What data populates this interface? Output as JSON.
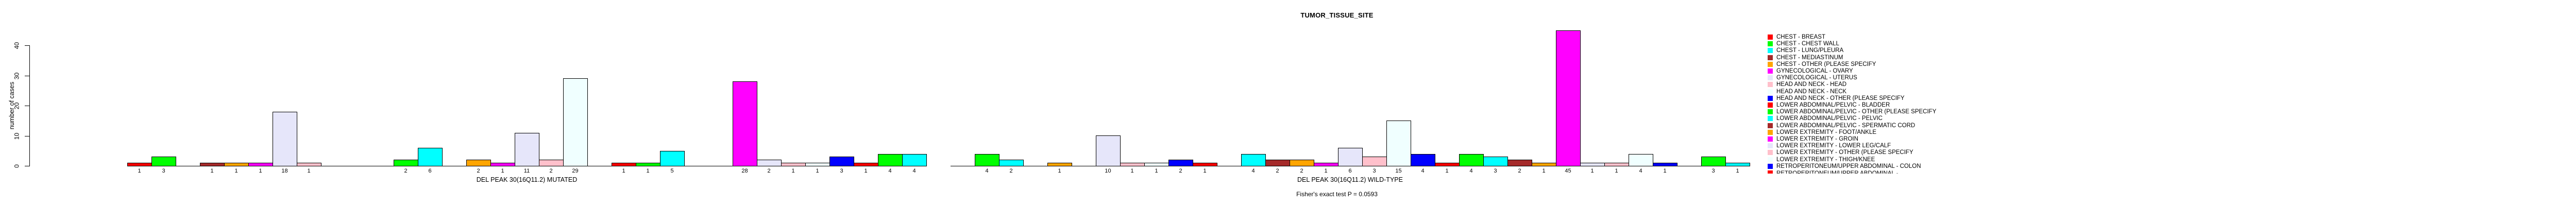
{
  "title": "TUMOR_TISSUE_SITE",
  "footer": "Fisher's exact test P = 0.0593",
  "y_axis": {
    "label": "number of cases",
    "ticks": [
      0,
      10,
      20,
      30,
      40
    ]
  },
  "palette": [
    "#FF0000",
    "#00FF00",
    "#00FFFF",
    "#A52A2A",
    "#FFA500",
    "#FF00FF",
    "#E6E6FA",
    "#FFC0CB",
    "#F0FFFF",
    "#0000FF"
  ],
  "legend": {
    "entries": [
      {
        "label": "CHEST - BREAST",
        "color": "#FF0000"
      },
      {
        "label": "CHEST - CHEST WALL",
        "color": "#00FF00"
      },
      {
        "label": "CHEST - LUNG/PLEURA",
        "color": "#00FFFF"
      },
      {
        "label": "CHEST - MEDIASTINUM",
        "color": "#A52A2A"
      },
      {
        "label": "CHEST - OTHER (PLEASE SPECIFY",
        "color": "#FFA500"
      },
      {
        "label": "GYNECOLOGICAL - OVARY",
        "color": "#FF00FF"
      },
      {
        "label": "GYNECOLOGICAL - UTERUS",
        "color": "#E6E6FA"
      },
      {
        "label": "HEAD AND NECK - HEAD",
        "color": "#FFC0CB"
      },
      {
        "label": "HEAD AND NECK - NECK",
        "color": "#F0FFFF"
      },
      {
        "label": "HEAD AND NECK - OTHER (PLEASE SPECIFY",
        "color": "#0000FF"
      },
      {
        "label": "LOWER ABDOMINAL/PELVIC - BLADDER",
        "color": "#FF0000"
      },
      {
        "label": "LOWER ABDOMINAL/PELVIC - OTHER (PLEASE SPECIFY",
        "color": "#00FF00"
      },
      {
        "label": "LOWER ABDOMINAL/PELVIC - PELVIC",
        "color": "#00FFFF"
      },
      {
        "label": "LOWER ABDOMINAL/PELVIC - SPERMATIC CORD",
        "color": "#A52A2A"
      },
      {
        "label": "LOWER EXTREMITY - FOOT/ANKLE",
        "color": "#FFA500"
      },
      {
        "label": "LOWER EXTREMITY - GROIN",
        "color": "#FF00FF"
      },
      {
        "label": "LOWER EXTREMITY - LOWER LEG/CALF",
        "color": "#E6E6FA"
      },
      {
        "label": "LOWER EXTREMITY - OTHER (PLEASE SPECIFY",
        "color": "#FFC0CB"
      },
      {
        "label": "LOWER EXTREMITY - THIGH/KNEE",
        "color": "#F0FFFF"
      },
      {
        "label": "RETROPERITONEUM/UPPER ABDOMINAL - COLON",
        "color": "#0000FF"
      }
    ],
    "clipped_row": {
      "label": "RETROPERITONEUM/UPPER ABDOMINAL - ...",
      "color": "#FF0000",
      "clipped": true
    }
  },
  "panels": [
    {
      "label": "DEL PEAK 30(16Q11.2) MUTATED",
      "values": [
        1,
        3,
        0,
        1,
        1,
        1,
        18,
        1,
        0,
        0,
        0,
        2,
        6,
        0,
        2,
        1,
        11,
        2,
        29,
        0,
        1,
        1,
        5,
        0,
        0,
        28,
        2,
        1,
        1,
        3,
        1,
        4,
        4
      ]
    },
    {
      "label": "DEL PEAK 30(16Q11.2) WILD-TYPE",
      "values": [
        0,
        4,
        2,
        0,
        1,
        0,
        10,
        1,
        1,
        2,
        1,
        0,
        4,
        2,
        2,
        1,
        6,
        3,
        15,
        4,
        1,
        4,
        3,
        2,
        1,
        45,
        1,
        1,
        4,
        1,
        0,
        3,
        1
      ]
    }
  ],
  "chart_data": {
    "type": "bar",
    "title": "TUMOR_TISSUE_SITE",
    "xlabel": "",
    "ylabel": "number of cases",
    "ylim": [
      0,
      40
    ],
    "yticks": [
      0,
      10,
      20,
      30,
      40
    ],
    "grid": false,
    "legend_position": "right",
    "annotation": "Fisher's exact test P = 0.0593",
    "note": "Legend is clipped at the bottom of the image; bar slots 21-33 repeat the 10-color cycle but their category names are not visible. Zero-value categories are rendered as gaps.",
    "categories": [
      "CHEST - BREAST",
      "CHEST - CHEST WALL",
      "CHEST - LUNG/PLEURA",
      "CHEST - MEDIASTINUM",
      "CHEST - OTHER (PLEASE SPECIFY",
      "GYNECOLOGICAL - OVARY",
      "GYNECOLOGICAL - UTERUS",
      "HEAD AND NECK - HEAD",
      "HEAD AND NECK - NECK",
      "HEAD AND NECK - OTHER (PLEASE SPECIFY",
      "LOWER ABDOMINAL/PELVIC - BLADDER",
      "LOWER ABDOMINAL/PELVIC - OTHER (PLEASE SPECIFY",
      "LOWER ABDOMINAL/PELVIC - PELVIC",
      "LOWER ABDOMINAL/PELVIC - SPERMATIC CORD",
      "LOWER EXTREMITY - FOOT/ANKLE",
      "LOWER EXTREMITY - GROIN",
      "LOWER EXTREMITY - LOWER LEG/CALF",
      "LOWER EXTREMITY - OTHER (PLEASE SPECIFY",
      "LOWER EXTREMITY - THIGH/KNEE",
      "RETROPERITONEUM/UPPER ABDOMINAL - COLON",
      null,
      null,
      null,
      null,
      null,
      null,
      null,
      null,
      null,
      null,
      null,
      null,
      null
    ],
    "series": [
      {
        "name": "DEL PEAK 30(16Q11.2) MUTATED",
        "values": [
          1,
          3,
          0,
          1,
          1,
          1,
          18,
          1,
          0,
          0,
          0,
          2,
          6,
          0,
          2,
          1,
          11,
          2,
          29,
          0,
          1,
          1,
          5,
          0,
          0,
          28,
          2,
          1,
          1,
          3,
          1,
          4,
          4
        ]
      },
      {
        "name": "DEL PEAK 30(16Q11.2) WILD-TYPE",
        "values": [
          0,
          4,
          2,
          0,
          1,
          0,
          10,
          1,
          1,
          2,
          1,
          0,
          4,
          2,
          2,
          1,
          6,
          3,
          15,
          4,
          1,
          4,
          3,
          2,
          1,
          45,
          1,
          1,
          4,
          1,
          0,
          3,
          1
        ]
      }
    ]
  }
}
